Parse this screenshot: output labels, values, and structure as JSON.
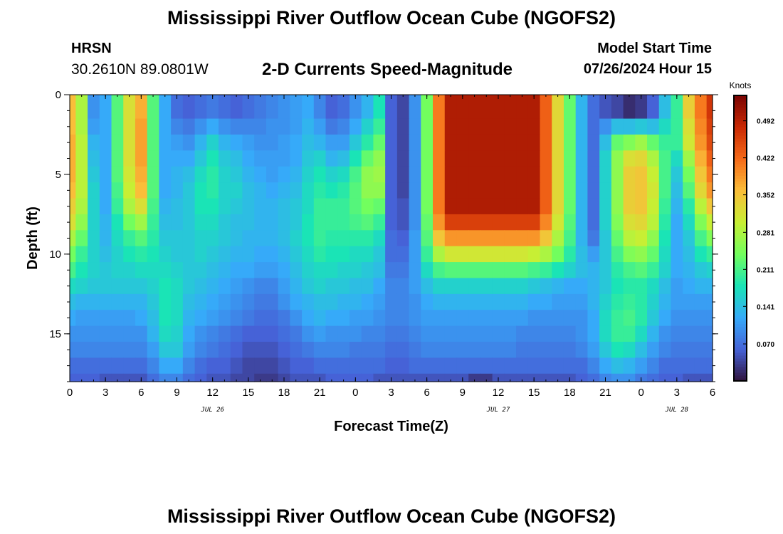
{
  "header": {
    "title": "Mississippi River Outflow Ocean Cube (NGOFS2)",
    "station": "HRSN",
    "coords": "30.2610N  89.0801W",
    "subtitle": "2-D Currents Speed-Magnitude",
    "model_start_label": "Model Start Time",
    "model_start_value": "07/26/2024 Hour 15"
  },
  "footer": {
    "title": "Mississippi River Outflow Ocean Cube (NGOFS2)"
  },
  "chart_data": {
    "type": "heatmap",
    "title": "2-D Currents Speed-Magnitude",
    "xlabel": "Forecast Time(Z)",
    "ylabel": "Depth (ft)",
    "x_ticks": [
      "0",
      "3",
      "6",
      "9",
      "12",
      "15",
      "18",
      "21",
      "0",
      "3",
      "6",
      "9",
      "12",
      "15",
      "18",
      "21",
      "0",
      "3",
      "6"
    ],
    "date_labels": [
      {
        "label": "JUL 26",
        "hours_from_start": 12
      },
      {
        "label": "JUL 27",
        "hours_from_start": 36
      },
      {
        "label": "JUL 28",
        "hours_from_start": 51
      }
    ],
    "y_ticks": [
      0,
      5,
      10,
      15
    ],
    "ylim": [
      0,
      18
    ],
    "x_range_hours": [
      0,
      54
    ],
    "colorbar": {
      "label": "Knots",
      "ticks": [
        "0.070",
        "0.141",
        "0.211",
        "0.281",
        "0.352",
        "0.422",
        "0.492"
      ],
      "range": [
        0.0,
        0.54
      ],
      "colors": [
        "#30123b",
        "#4662d7",
        "#36aaf9",
        "#1ae4b6",
        "#72fe5e",
        "#c7ef34",
        "#fabe39",
        "#f66b19",
        "#ca2a04",
        "#7a0403"
      ]
    },
    "depths_ft": [
      0,
      1,
      2,
      3,
      4,
      5,
      6,
      7,
      8,
      9,
      10,
      11,
      12,
      13,
      14,
      15,
      16,
      17,
      18
    ],
    "time_hours": [
      0,
      1,
      2,
      3,
      4,
      5,
      6,
      7,
      8,
      9,
      10,
      11,
      12,
      13,
      14,
      15,
      16,
      17,
      18,
      19,
      20,
      21,
      22,
      23,
      24,
      25,
      26,
      27,
      28,
      29,
      30,
      31,
      32,
      33,
      34,
      35,
      36,
      37,
      38,
      39,
      40,
      41,
      42,
      43,
      44,
      45,
      46,
      47,
      48,
      49,
      50,
      51,
      52,
      53,
      54
    ],
    "speed_knots": [
      [
        0.36,
        0.28,
        0.1,
        0.12,
        0.22,
        0.32,
        0.37,
        0.22,
        0.12,
        0.07,
        0.06,
        0.07,
        0.08,
        0.07,
        0.06,
        0.07,
        0.08,
        0.09,
        0.1,
        0.11,
        0.12,
        0.09,
        0.06,
        0.07,
        0.1,
        0.13,
        0.18,
        0.06,
        0.04,
        0.1,
        0.24,
        0.41,
        0.5,
        0.5,
        0.5,
        0.5,
        0.5,
        0.5,
        0.5,
        0.5,
        0.43,
        0.33,
        0.23,
        0.13,
        0.07,
        0.05,
        0.04,
        0.02,
        0.03,
        0.06,
        0.14,
        0.2,
        0.34,
        0.41,
        0.47
      ],
      [
        0.36,
        0.28,
        0.1,
        0.12,
        0.22,
        0.32,
        0.37,
        0.22,
        0.12,
        0.07,
        0.06,
        0.07,
        0.08,
        0.07,
        0.06,
        0.07,
        0.08,
        0.09,
        0.1,
        0.11,
        0.12,
        0.09,
        0.06,
        0.07,
        0.1,
        0.13,
        0.18,
        0.06,
        0.04,
        0.1,
        0.24,
        0.41,
        0.5,
        0.5,
        0.5,
        0.5,
        0.5,
        0.5,
        0.5,
        0.5,
        0.43,
        0.33,
        0.23,
        0.13,
        0.07,
        0.05,
        0.04,
        0.02,
        0.03,
        0.06,
        0.14,
        0.2,
        0.34,
        0.41,
        0.47
      ],
      [
        0.36,
        0.28,
        0.11,
        0.12,
        0.22,
        0.32,
        0.38,
        0.22,
        0.12,
        0.09,
        0.08,
        0.1,
        0.12,
        0.1,
        0.09,
        0.09,
        0.09,
        0.1,
        0.1,
        0.11,
        0.13,
        0.11,
        0.08,
        0.09,
        0.12,
        0.16,
        0.2,
        0.06,
        0.04,
        0.1,
        0.24,
        0.41,
        0.5,
        0.5,
        0.5,
        0.5,
        0.5,
        0.5,
        0.5,
        0.5,
        0.43,
        0.33,
        0.23,
        0.13,
        0.07,
        0.1,
        0.14,
        0.14,
        0.15,
        0.14,
        0.17,
        0.2,
        0.32,
        0.4,
        0.46
      ],
      [
        0.37,
        0.29,
        0.13,
        0.12,
        0.22,
        0.32,
        0.38,
        0.22,
        0.12,
        0.11,
        0.1,
        0.13,
        0.16,
        0.13,
        0.12,
        0.11,
        0.1,
        0.1,
        0.11,
        0.12,
        0.14,
        0.13,
        0.11,
        0.11,
        0.15,
        0.19,
        0.23,
        0.06,
        0.04,
        0.1,
        0.24,
        0.41,
        0.5,
        0.5,
        0.5,
        0.5,
        0.5,
        0.5,
        0.5,
        0.5,
        0.43,
        0.33,
        0.23,
        0.13,
        0.07,
        0.14,
        0.23,
        0.25,
        0.27,
        0.23,
        0.2,
        0.2,
        0.31,
        0.39,
        0.45
      ],
      [
        0.37,
        0.29,
        0.14,
        0.12,
        0.22,
        0.32,
        0.38,
        0.22,
        0.12,
        0.12,
        0.12,
        0.15,
        0.18,
        0.15,
        0.14,
        0.12,
        0.11,
        0.11,
        0.11,
        0.12,
        0.15,
        0.16,
        0.13,
        0.14,
        0.18,
        0.23,
        0.26,
        0.06,
        0.04,
        0.1,
        0.24,
        0.41,
        0.5,
        0.5,
        0.5,
        0.5,
        0.5,
        0.5,
        0.5,
        0.5,
        0.43,
        0.33,
        0.23,
        0.13,
        0.07,
        0.16,
        0.26,
        0.32,
        0.33,
        0.28,
        0.21,
        0.17,
        0.27,
        0.37,
        0.43
      ],
      [
        0.37,
        0.29,
        0.15,
        0.12,
        0.22,
        0.31,
        0.37,
        0.22,
        0.12,
        0.13,
        0.14,
        0.17,
        0.19,
        0.16,
        0.15,
        0.13,
        0.12,
        0.11,
        0.12,
        0.13,
        0.16,
        0.18,
        0.16,
        0.17,
        0.21,
        0.26,
        0.27,
        0.06,
        0.04,
        0.1,
        0.24,
        0.41,
        0.5,
        0.5,
        0.5,
        0.5,
        0.5,
        0.5,
        0.5,
        0.5,
        0.43,
        0.33,
        0.23,
        0.13,
        0.07,
        0.16,
        0.26,
        0.34,
        0.35,
        0.3,
        0.21,
        0.15,
        0.24,
        0.35,
        0.41
      ],
      [
        0.36,
        0.29,
        0.16,
        0.12,
        0.21,
        0.3,
        0.36,
        0.22,
        0.12,
        0.13,
        0.15,
        0.18,
        0.19,
        0.16,
        0.16,
        0.14,
        0.13,
        0.12,
        0.13,
        0.14,
        0.17,
        0.19,
        0.18,
        0.19,
        0.22,
        0.26,
        0.26,
        0.06,
        0.04,
        0.1,
        0.24,
        0.41,
        0.5,
        0.5,
        0.5,
        0.5,
        0.5,
        0.5,
        0.5,
        0.5,
        0.43,
        0.33,
        0.23,
        0.13,
        0.07,
        0.16,
        0.26,
        0.34,
        0.35,
        0.31,
        0.21,
        0.14,
        0.22,
        0.33,
        0.39
      ],
      [
        0.34,
        0.28,
        0.16,
        0.12,
        0.2,
        0.28,
        0.32,
        0.21,
        0.13,
        0.14,
        0.15,
        0.18,
        0.18,
        0.16,
        0.15,
        0.14,
        0.13,
        0.13,
        0.14,
        0.15,
        0.17,
        0.2,
        0.2,
        0.2,
        0.22,
        0.24,
        0.23,
        0.06,
        0.05,
        0.1,
        0.24,
        0.41,
        0.5,
        0.5,
        0.5,
        0.5,
        0.5,
        0.5,
        0.5,
        0.5,
        0.43,
        0.33,
        0.23,
        0.13,
        0.07,
        0.16,
        0.26,
        0.34,
        0.35,
        0.3,
        0.2,
        0.13,
        0.19,
        0.29,
        0.35
      ],
      [
        0.32,
        0.26,
        0.16,
        0.13,
        0.18,
        0.24,
        0.27,
        0.2,
        0.14,
        0.14,
        0.15,
        0.17,
        0.17,
        0.15,
        0.14,
        0.14,
        0.13,
        0.13,
        0.14,
        0.15,
        0.18,
        0.2,
        0.2,
        0.2,
        0.21,
        0.22,
        0.2,
        0.06,
        0.05,
        0.1,
        0.23,
        0.39,
        0.46,
        0.46,
        0.46,
        0.46,
        0.46,
        0.46,
        0.46,
        0.46,
        0.4,
        0.31,
        0.22,
        0.13,
        0.07,
        0.16,
        0.25,
        0.32,
        0.33,
        0.29,
        0.19,
        0.12,
        0.17,
        0.25,
        0.3
      ],
      [
        0.28,
        0.23,
        0.16,
        0.13,
        0.17,
        0.2,
        0.22,
        0.19,
        0.15,
        0.15,
        0.15,
        0.16,
        0.16,
        0.15,
        0.14,
        0.13,
        0.13,
        0.13,
        0.14,
        0.16,
        0.18,
        0.2,
        0.19,
        0.19,
        0.19,
        0.19,
        0.17,
        0.07,
        0.06,
        0.11,
        0.22,
        0.35,
        0.39,
        0.39,
        0.39,
        0.39,
        0.39,
        0.39,
        0.39,
        0.39,
        0.35,
        0.28,
        0.21,
        0.13,
        0.08,
        0.15,
        0.23,
        0.29,
        0.3,
        0.26,
        0.18,
        0.12,
        0.15,
        0.21,
        0.25
      ],
      [
        0.24,
        0.2,
        0.16,
        0.14,
        0.16,
        0.18,
        0.19,
        0.18,
        0.16,
        0.15,
        0.15,
        0.16,
        0.15,
        0.14,
        0.13,
        0.13,
        0.12,
        0.12,
        0.13,
        0.15,
        0.17,
        0.19,
        0.18,
        0.18,
        0.17,
        0.17,
        0.15,
        0.07,
        0.07,
        0.11,
        0.2,
        0.28,
        0.31,
        0.31,
        0.31,
        0.31,
        0.31,
        0.31,
        0.31,
        0.3,
        0.28,
        0.24,
        0.19,
        0.14,
        0.11,
        0.15,
        0.21,
        0.25,
        0.26,
        0.23,
        0.17,
        0.12,
        0.14,
        0.18,
        0.2
      ],
      [
        0.21,
        0.18,
        0.16,
        0.15,
        0.16,
        0.16,
        0.17,
        0.17,
        0.17,
        0.16,
        0.15,
        0.15,
        0.14,
        0.13,
        0.12,
        0.12,
        0.11,
        0.11,
        0.12,
        0.14,
        0.16,
        0.17,
        0.17,
        0.16,
        0.16,
        0.15,
        0.14,
        0.08,
        0.08,
        0.11,
        0.17,
        0.21,
        0.22,
        0.22,
        0.22,
        0.22,
        0.22,
        0.22,
        0.22,
        0.21,
        0.2,
        0.18,
        0.16,
        0.14,
        0.13,
        0.15,
        0.19,
        0.21,
        0.22,
        0.2,
        0.16,
        0.12,
        0.13,
        0.15,
        0.16
      ],
      [
        0.17,
        0.16,
        0.15,
        0.15,
        0.15,
        0.15,
        0.15,
        0.16,
        0.18,
        0.17,
        0.15,
        0.14,
        0.13,
        0.12,
        0.11,
        0.1,
        0.09,
        0.09,
        0.11,
        0.13,
        0.15,
        0.16,
        0.15,
        0.15,
        0.14,
        0.14,
        0.12,
        0.09,
        0.09,
        0.11,
        0.14,
        0.16,
        0.16,
        0.16,
        0.16,
        0.16,
        0.16,
        0.16,
        0.16,
        0.15,
        0.14,
        0.13,
        0.12,
        0.12,
        0.13,
        0.15,
        0.18,
        0.19,
        0.19,
        0.17,
        0.14,
        0.11,
        0.12,
        0.13,
        0.13
      ],
      [
        0.14,
        0.13,
        0.13,
        0.13,
        0.13,
        0.13,
        0.13,
        0.15,
        0.18,
        0.17,
        0.14,
        0.13,
        0.12,
        0.11,
        0.1,
        0.09,
        0.08,
        0.08,
        0.1,
        0.12,
        0.13,
        0.14,
        0.14,
        0.13,
        0.13,
        0.12,
        0.11,
        0.09,
        0.09,
        0.1,
        0.12,
        0.13,
        0.13,
        0.13,
        0.13,
        0.13,
        0.13,
        0.13,
        0.13,
        0.12,
        0.12,
        0.11,
        0.11,
        0.11,
        0.13,
        0.16,
        0.19,
        0.2,
        0.19,
        0.16,
        0.13,
        0.11,
        0.11,
        0.11,
        0.11
      ],
      [
        0.12,
        0.11,
        0.11,
        0.11,
        0.11,
        0.11,
        0.12,
        0.14,
        0.18,
        0.17,
        0.13,
        0.12,
        0.11,
        0.1,
        0.09,
        0.08,
        0.07,
        0.07,
        0.08,
        0.1,
        0.12,
        0.13,
        0.12,
        0.12,
        0.11,
        0.11,
        0.1,
        0.09,
        0.09,
        0.1,
        0.11,
        0.11,
        0.11,
        0.11,
        0.11,
        0.11,
        0.11,
        0.11,
        0.11,
        0.1,
        0.1,
        0.1,
        0.1,
        0.1,
        0.12,
        0.17,
        0.2,
        0.21,
        0.19,
        0.15,
        0.12,
        0.1,
        0.1,
        0.1,
        0.1
      ],
      [
        0.1,
        0.1,
        0.1,
        0.1,
        0.1,
        0.1,
        0.1,
        0.13,
        0.17,
        0.16,
        0.12,
        0.1,
        0.09,
        0.08,
        0.07,
        0.06,
        0.06,
        0.06,
        0.07,
        0.08,
        0.1,
        0.11,
        0.1,
        0.1,
        0.1,
        0.09,
        0.09,
        0.08,
        0.08,
        0.09,
        0.1,
        0.1,
        0.1,
        0.1,
        0.1,
        0.1,
        0.1,
        0.1,
        0.09,
        0.09,
        0.09,
        0.09,
        0.09,
        0.1,
        0.12,
        0.17,
        0.2,
        0.2,
        0.17,
        0.13,
        0.1,
        0.09,
        0.09,
        0.09,
        0.09
      ],
      [
        0.09,
        0.09,
        0.09,
        0.09,
        0.09,
        0.09,
        0.09,
        0.11,
        0.15,
        0.15,
        0.11,
        0.09,
        0.08,
        0.07,
        0.06,
        0.05,
        0.05,
        0.05,
        0.06,
        0.07,
        0.08,
        0.09,
        0.09,
        0.09,
        0.08,
        0.08,
        0.08,
        0.07,
        0.07,
        0.08,
        0.09,
        0.09,
        0.09,
        0.09,
        0.09,
        0.09,
        0.09,
        0.09,
        0.08,
        0.08,
        0.08,
        0.08,
        0.08,
        0.09,
        0.11,
        0.15,
        0.18,
        0.17,
        0.14,
        0.11,
        0.09,
        0.08,
        0.08,
        0.08,
        0.08
      ],
      [
        0.07,
        0.07,
        0.07,
        0.07,
        0.07,
        0.07,
        0.07,
        0.09,
        0.12,
        0.12,
        0.09,
        0.07,
        0.06,
        0.06,
        0.05,
        0.04,
        0.04,
        0.04,
        0.05,
        0.06,
        0.06,
        0.07,
        0.07,
        0.07,
        0.07,
        0.07,
        0.07,
        0.06,
        0.06,
        0.07,
        0.07,
        0.07,
        0.07,
        0.07,
        0.07,
        0.07,
        0.07,
        0.07,
        0.07,
        0.07,
        0.07,
        0.07,
        0.07,
        0.07,
        0.09,
        0.12,
        0.14,
        0.13,
        0.11,
        0.09,
        0.07,
        0.07,
        0.07,
        0.07,
        0.07
      ],
      [
        0.06,
        0.06,
        0.06,
        0.05,
        0.05,
        0.05,
        0.05,
        0.07,
        0.09,
        0.09,
        0.07,
        0.06,
        0.05,
        0.05,
        0.04,
        0.04,
        0.03,
        0.03,
        0.04,
        0.05,
        0.05,
        0.05,
        0.06,
        0.06,
        0.06,
        0.06,
        0.05,
        0.05,
        0.05,
        0.05,
        0.05,
        0.05,
        0.05,
        0.05,
        0.03,
        0.03,
        0.05,
        0.05,
        0.05,
        0.05,
        0.05,
        0.05,
        0.05,
        0.06,
        0.07,
        0.09,
        0.1,
        0.1,
        0.08,
        0.07,
        0.06,
        0.06,
        0.05,
        0.05,
        0.05
      ]
    ]
  }
}
